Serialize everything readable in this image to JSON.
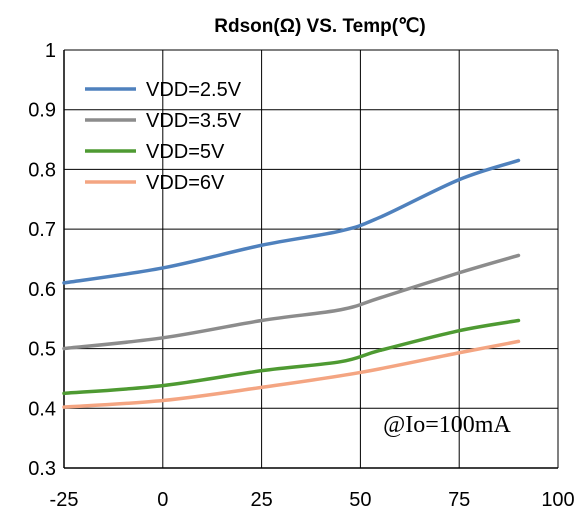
{
  "chart_data": {
    "type": "line",
    "title": "Rdson(Ω) VS. Temp(℃)",
    "xlabel": "",
    "ylabel": "",
    "xlim": [
      -25,
      100
    ],
    "ylim": [
      0.3,
      1
    ],
    "xticks": [
      "-25",
      "0",
      "25",
      "50",
      "75",
      "100"
    ],
    "yticks": [
      "0.3",
      "0.4",
      "0.5",
      "0.6",
      "0.7",
      "0.8",
      "0.9",
      "1"
    ],
    "grid": true,
    "legend_position": "top-left",
    "annotation": "@Io=100mA",
    "series": [
      {
        "name": "VDD=2.5V",
        "color": "#4f81bd",
        "x": [
          -25,
          0,
          25,
          45,
          55,
          75,
          90
        ],
        "y": [
          0.61,
          0.635,
          0.673,
          0.697,
          0.72,
          0.783,
          0.815
        ]
      },
      {
        "name": "VDD=3.5V",
        "color": "#8c8c8c",
        "x": [
          -25,
          0,
          25,
          45,
          55,
          75,
          90
        ],
        "y": [
          0.5,
          0.518,
          0.547,
          0.565,
          0.585,
          0.627,
          0.656
        ]
      },
      {
        "name": "VDD=5V",
        "color": "#4e9a32",
        "x": [
          -25,
          0,
          25,
          45,
          55,
          75,
          90
        ],
        "y": [
          0.425,
          0.438,
          0.463,
          0.478,
          0.497,
          0.53,
          0.547
        ]
      },
      {
        "name": "VDD=6V",
        "color": "#f4a582",
        "x": [
          -25,
          0,
          25,
          50,
          75,
          90
        ],
        "y": [
          0.402,
          0.413,
          0.435,
          0.46,
          0.493,
          0.512
        ]
      }
    ]
  }
}
